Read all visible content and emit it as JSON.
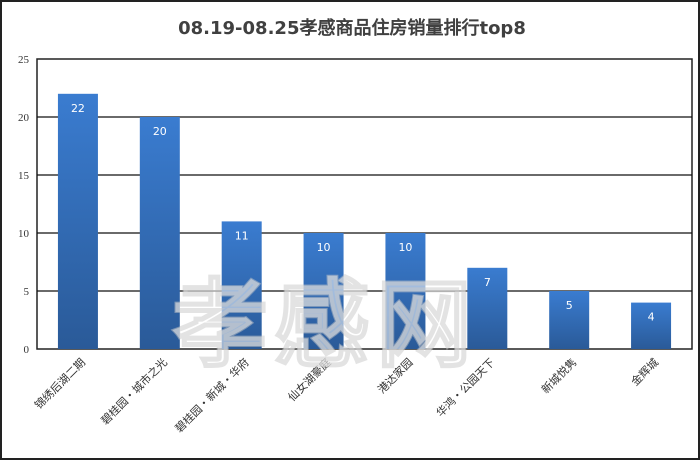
{
  "chart_data": {
    "type": "bar",
    "title": "08.19-08.25孝感商品住房销量排行top8",
    "categories": [
      "锦绣后湖二期",
      "碧桂园・城市之光",
      "碧桂园・新城・华府",
      "仙女湖豪庭",
      "港达家园",
      "华鸿・公园天下",
      "新城悦隽",
      "金辉城"
    ],
    "values": [
      22,
      20,
      11,
      10,
      10,
      7,
      5,
      4
    ],
    "ylim": [
      0,
      25
    ],
    "yticks": [
      0,
      5,
      10,
      15,
      20,
      25
    ],
    "grid": true,
    "data_labels": true,
    "bar_color": "#2f64a8",
    "xlabel": "",
    "ylabel": ""
  },
  "watermark": "孝感网"
}
